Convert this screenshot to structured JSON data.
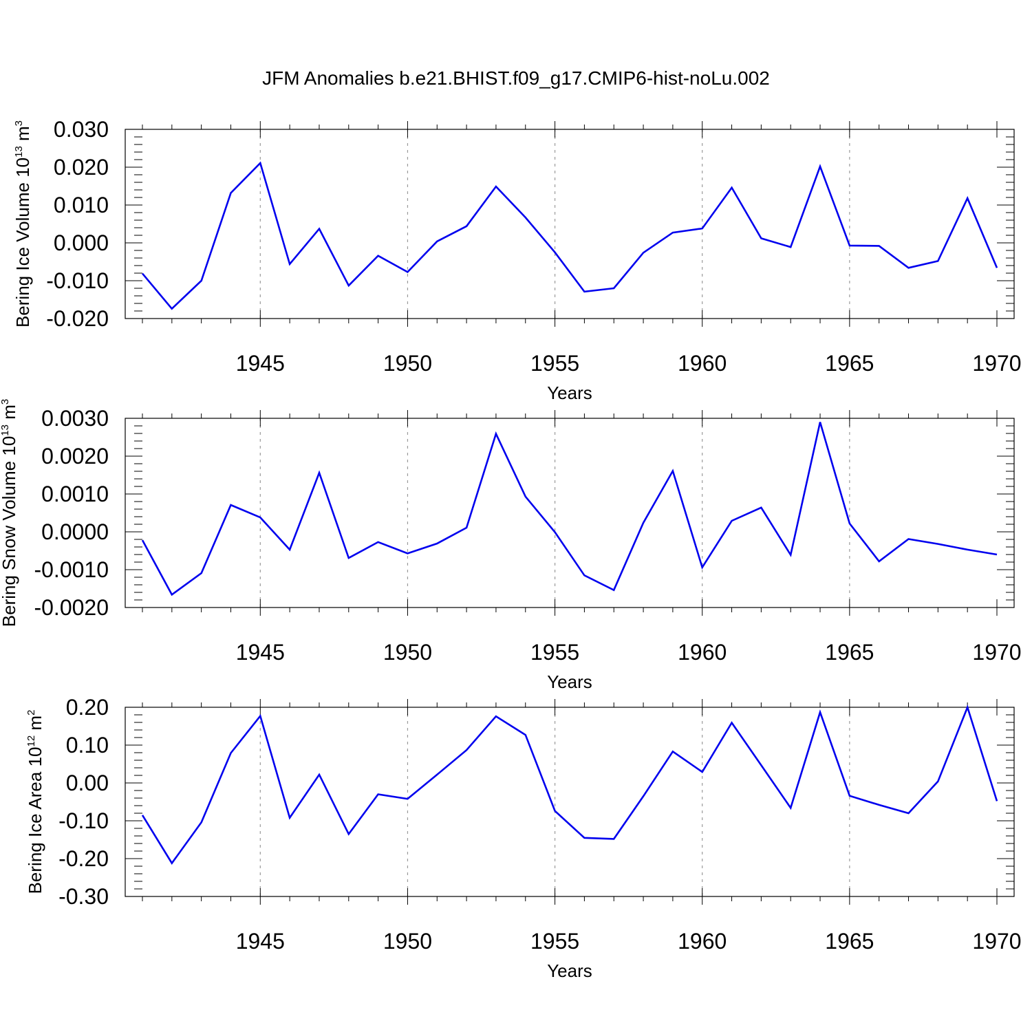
{
  "title": "JFM Anomalies b.e21.BHIST.f09_g17.CMIP6-hist-noLu.002",
  "colors": {
    "line": "#0000ee",
    "axis": "#000000",
    "grid": "#999999"
  },
  "chart_data": [
    {
      "type": "line",
      "name": "ice-volume",
      "ylabel_main": "Bering Ice Volume 10",
      "ylabel_exp": "13",
      "ylabel_unit": "m",
      "ylabel_unit_exp": "3",
      "xlabel": "Years",
      "xlim": [
        1941,
        1970
      ],
      "ylim": [
        -0.02,
        0.03
      ],
      "yticks": [
        -0.02,
        -0.01,
        0.0,
        0.01,
        0.02,
        0.03
      ],
      "ytick_labels": [
        "-0.020",
        "-0.010",
        "0.000",
        "0.010",
        "0.020",
        "0.030"
      ],
      "xticks": [
        1945,
        1950,
        1955,
        1960,
        1965,
        1970
      ],
      "xtick_labels": [
        "1945",
        "1950",
        "1955",
        "1960",
        "1965",
        "1970"
      ],
      "x": [
        1941,
        1942,
        1943,
        1944,
        1945,
        1946,
        1947,
        1948,
        1949,
        1950,
        1951,
        1952,
        1953,
        1954,
        1955,
        1956,
        1957,
        1958,
        1959,
        1960,
        1961,
        1962,
        1963,
        1964,
        1965,
        1966,
        1967,
        1968,
        1969,
        1970
      ],
      "values": [
        -0.0081,
        -0.0174,
        -0.01,
        0.0132,
        0.0211,
        -0.0056,
        0.0037,
        -0.0113,
        -0.0034,
        -0.0077,
        0.0004,
        0.0044,
        0.0149,
        0.0067,
        -0.0025,
        -0.0129,
        -0.012,
        -0.0026,
        0.0027,
        0.0038,
        0.0146,
        0.0012,
        -0.0011,
        0.0202,
        -0.0007,
        -0.0008,
        -0.0066,
        -0.0048,
        0.0118,
        -0.0066
      ]
    },
    {
      "type": "line",
      "name": "snow-volume",
      "ylabel_main": "Bering Snow Volume 10",
      "ylabel_exp": "13",
      "ylabel_unit": "m",
      "ylabel_unit_exp": "3",
      "xlabel": "Years",
      "xlim": [
        1941,
        1970
      ],
      "ylim": [
        -0.002,
        0.003
      ],
      "yticks": [
        -0.002,
        -0.001,
        0.0,
        0.001,
        0.002,
        0.003
      ],
      "ytick_labels": [
        "-0.0020",
        "-0.0010",
        "0.0000",
        "0.0010",
        "0.0020",
        "0.0030"
      ],
      "xticks": [
        1945,
        1950,
        1955,
        1960,
        1965,
        1970
      ],
      "xtick_labels": [
        "1945",
        "1950",
        "1955",
        "1960",
        "1965",
        "1970"
      ],
      "x": [
        1941,
        1942,
        1943,
        1944,
        1945,
        1946,
        1947,
        1948,
        1949,
        1950,
        1951,
        1952,
        1953,
        1954,
        1955,
        1956,
        1957,
        1958,
        1959,
        1960,
        1961,
        1962,
        1963,
        1964,
        1965,
        1966,
        1967,
        1968,
        1969,
        1970
      ],
      "values": [
        -0.00022,
        -0.00166,
        -0.00109,
        0.00071,
        0.00038,
        -0.00047,
        0.00156,
        -0.00069,
        -0.00027,
        -0.00057,
        -0.00031,
        0.00011,
        0.00259,
        0.00093,
        -1e-05,
        -0.00115,
        -0.00154,
        0.00024,
        0.00161,
        -0.00094,
        0.00029,
        0.00064,
        -0.00061,
        0.0029,
        0.00022,
        -0.00078,
        -0.00019,
        -0.00032,
        -0.00047,
        -0.0006
      ]
    },
    {
      "type": "line",
      "name": "ice-area",
      "ylabel_main": "Bering Ice Area 10",
      "ylabel_exp": "12",
      "ylabel_unit": "m",
      "ylabel_unit_exp": "2",
      "xlabel": "Years",
      "xlim": [
        1941,
        1970
      ],
      "ylim": [
        -0.3,
        0.2
      ],
      "yticks": [
        -0.3,
        -0.2,
        -0.1,
        0.0,
        0.1,
        0.2
      ],
      "ytick_labels": [
        "-0.30",
        "-0.20",
        "-0.10",
        "0.00",
        "0.10",
        "0.20"
      ],
      "xticks": [
        1945,
        1950,
        1955,
        1960,
        1965,
        1970
      ],
      "xtick_labels": [
        "1945",
        "1950",
        "1955",
        "1960",
        "1965",
        "1970"
      ],
      "x": [
        1941,
        1942,
        1943,
        1944,
        1945,
        1946,
        1947,
        1948,
        1949,
        1950,
        1951,
        1952,
        1953,
        1954,
        1955,
        1956,
        1957,
        1958,
        1959,
        1960,
        1961,
        1962,
        1963,
        1964,
        1965,
        1966,
        1967,
        1968,
        1969,
        1970
      ],
      "values": [
        -0.085,
        -0.212,
        -0.104,
        0.079,
        0.177,
        -0.092,
        0.022,
        -0.135,
        -0.03,
        -0.042,
        0.022,
        0.087,
        0.176,
        0.127,
        -0.074,
        -0.145,
        -0.148,
        -0.035,
        0.083,
        0.029,
        0.159,
        0.047,
        -0.066,
        0.187,
        -0.034,
        -0.058,
        -0.08,
        0.004,
        0.2,
        -0.048
      ]
    }
  ]
}
